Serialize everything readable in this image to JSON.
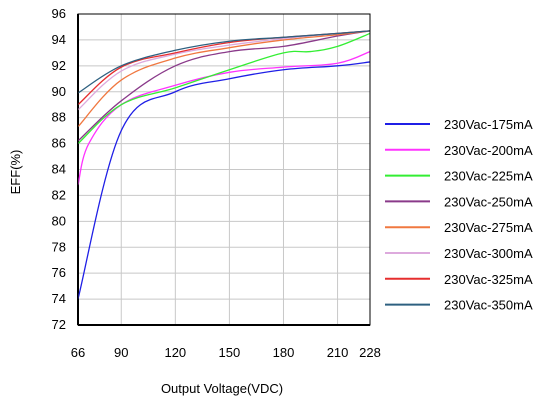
{
  "chart_data": {
    "type": "line",
    "xlabel": "Output Voltage(VDC)",
    "ylabel": "EFF(%)",
    "xlim": [
      66,
      228
    ],
    "ylim": [
      72,
      96
    ],
    "x_ticks": [
      66,
      90,
      120,
      150,
      180,
      210,
      228
    ],
    "y_ticks": [
      72,
      74,
      76,
      78,
      80,
      82,
      84,
      86,
      88,
      90,
      92,
      94,
      96
    ],
    "grid": true,
    "legend_position": "right",
    "series": [
      {
        "name": "230Vac-175mA",
        "color": "#1f1fe6",
        "points": [
          [
            66,
            74.0
          ],
          [
            90,
            87.0
          ],
          [
            120,
            90.0
          ],
          [
            150,
            91.0
          ],
          [
            180,
            91.7
          ],
          [
            210,
            92.0
          ],
          [
            228,
            92.3
          ]
        ]
      },
      {
        "name": "230Vac-200mA",
        "color": "#ff33ff",
        "points": [
          [
            66,
            82.8
          ],
          [
            72,
            86.0
          ],
          [
            90,
            89.0
          ],
          [
            120,
            90.5
          ],
          [
            150,
            91.5
          ],
          [
            180,
            91.9
          ],
          [
            210,
            92.2
          ],
          [
            228,
            93.1
          ]
        ]
      },
      {
        "name": "230Vac-225mA",
        "color": "#33ee33",
        "points": [
          [
            66,
            86.0
          ],
          [
            90,
            89.0
          ],
          [
            120,
            90.3
          ],
          [
            150,
            91.7
          ],
          [
            180,
            93.0
          ],
          [
            195,
            93.1
          ],
          [
            210,
            93.5
          ],
          [
            228,
            94.5
          ]
        ]
      },
      {
        "name": "230Vac-250mA",
        "color": "#8a3a8a",
        "points": [
          [
            66,
            86.2
          ],
          [
            90,
            89.3
          ],
          [
            120,
            92.0
          ],
          [
            150,
            93.1
          ],
          [
            180,
            93.5
          ],
          [
            210,
            94.3
          ],
          [
            228,
            94.7
          ]
        ]
      },
      {
        "name": "230Vac-275mA",
        "color": "#f07840",
        "points": [
          [
            66,
            87.3
          ],
          [
            90,
            90.9
          ],
          [
            120,
            92.6
          ],
          [
            150,
            93.4
          ],
          [
            180,
            94.0
          ],
          [
            210,
            94.4
          ],
          [
            228,
            94.7
          ]
        ]
      },
      {
        "name": "230Vac-300mA",
        "color": "#ddaadd",
        "points": [
          [
            66,
            88.6
          ],
          [
            90,
            91.6
          ],
          [
            120,
            92.9
          ],
          [
            150,
            93.6
          ],
          [
            180,
            94.1
          ],
          [
            210,
            94.5
          ],
          [
            228,
            94.7
          ]
        ]
      },
      {
        "name": "230Vac-325mA",
        "color": "#e62e2e",
        "points": [
          [
            66,
            89.0
          ],
          [
            90,
            91.9
          ],
          [
            120,
            93.0
          ],
          [
            150,
            93.8
          ],
          [
            180,
            94.2
          ],
          [
            210,
            94.5
          ],
          [
            228,
            94.7
          ]
        ]
      },
      {
        "name": "230Vac-350mA",
        "color": "#2e6080",
        "points": [
          [
            66,
            89.9
          ],
          [
            90,
            92.0
          ],
          [
            120,
            93.2
          ],
          [
            150,
            93.9
          ],
          [
            180,
            94.2
          ],
          [
            210,
            94.5
          ],
          [
            228,
            94.7
          ]
        ]
      }
    ]
  }
}
